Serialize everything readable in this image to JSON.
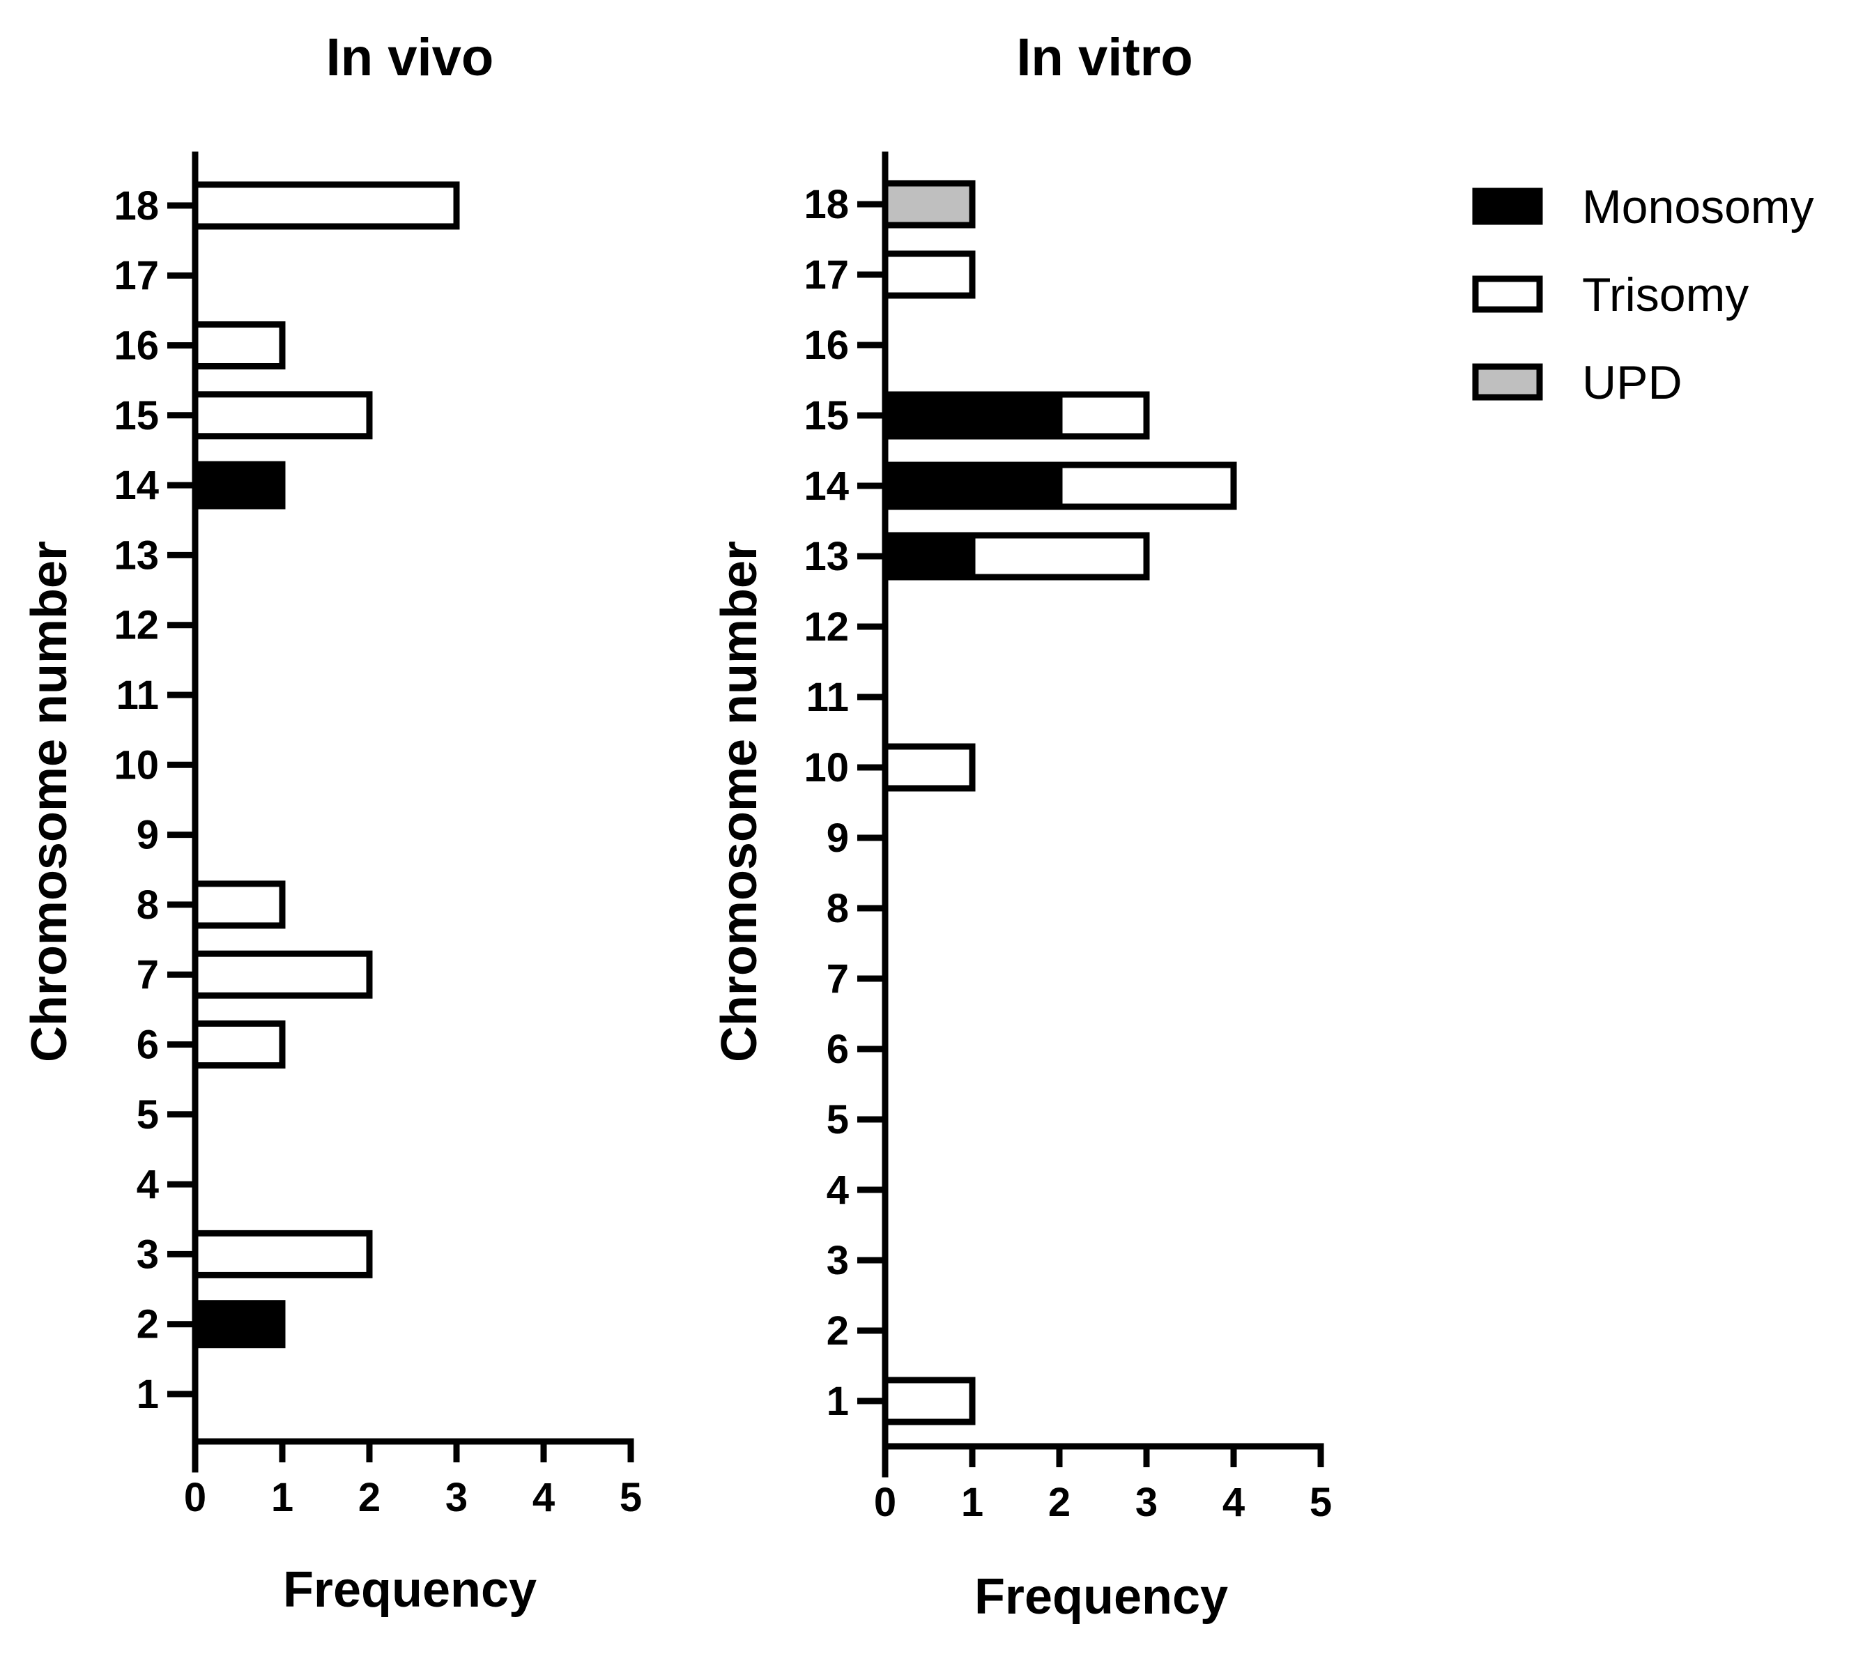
{
  "chart_data": [
    {
      "type": "bar",
      "orientation": "horizontal",
      "stacked": true,
      "title": "In vivo",
      "xlabel": "Frequency",
      "ylabel": "Chromosome number",
      "xlim": [
        0,
        5
      ],
      "xticks": [
        "0",
        "1",
        "2",
        "3",
        "4",
        "5"
      ],
      "categories": [
        "1",
        "2",
        "3",
        "4",
        "5",
        "6",
        "7",
        "8",
        "9",
        "10",
        "11",
        "12",
        "13",
        "14",
        "15",
        "16",
        "17",
        "18"
      ],
      "series": [
        {
          "name": "Monosomy",
          "values": [
            0,
            1,
            0,
            0,
            0,
            0,
            0,
            0,
            0,
            0,
            0,
            0,
            0,
            1,
            0,
            0,
            0,
            0
          ]
        },
        {
          "name": "Trisomy",
          "values": [
            0,
            0,
            2,
            0,
            0,
            1,
            2,
            1,
            0,
            0,
            0,
            0,
            0,
            0,
            2,
            1,
            0,
            3
          ]
        },
        {
          "name": "UPD",
          "values": [
            0,
            0,
            0,
            0,
            0,
            0,
            0,
            0,
            0,
            0,
            0,
            0,
            0,
            0,
            0,
            0,
            0,
            0
          ]
        }
      ]
    },
    {
      "type": "bar",
      "orientation": "horizontal",
      "stacked": true,
      "title": "In vitro",
      "xlabel": "Frequency",
      "ylabel": "Chromosome number",
      "xlim": [
        0,
        5
      ],
      "xticks": [
        "0",
        "1",
        "2",
        "3",
        "4",
        "5"
      ],
      "categories": [
        "1",
        "2",
        "3",
        "4",
        "5",
        "6",
        "7",
        "8",
        "9",
        "10",
        "11",
        "12",
        "13",
        "14",
        "15",
        "16",
        "17",
        "18"
      ],
      "series": [
        {
          "name": "Monosomy",
          "values": [
            0,
            0,
            0,
            0,
            0,
            0,
            0,
            0,
            0,
            0,
            0,
            0,
            1,
            2,
            2,
            0,
            0,
            0
          ]
        },
        {
          "name": "Trisomy",
          "values": [
            1,
            0,
            0,
            0,
            0,
            0,
            0,
            0,
            0,
            1,
            0,
            0,
            2,
            2,
            1,
            0,
            1,
            0
          ]
        },
        {
          "name": "UPD",
          "values": [
            0,
            0,
            0,
            0,
            0,
            0,
            0,
            0,
            0,
            0,
            0,
            0,
            0,
            0,
            0,
            0,
            0,
            1
          ]
        }
      ]
    }
  ],
  "legend": {
    "placement": "top-right",
    "items": [
      {
        "label": "Monosomy",
        "color": "#000000"
      },
      {
        "label": "Trisomy",
        "color": "#ffffff"
      },
      {
        "label": "UPD",
        "color": "#bfbfbf"
      }
    ]
  },
  "colors": {
    "Monosomy": "#000000",
    "Trisomy": "#ffffff",
    "UPD": "#bfbfbf",
    "stroke": "#000000"
  }
}
